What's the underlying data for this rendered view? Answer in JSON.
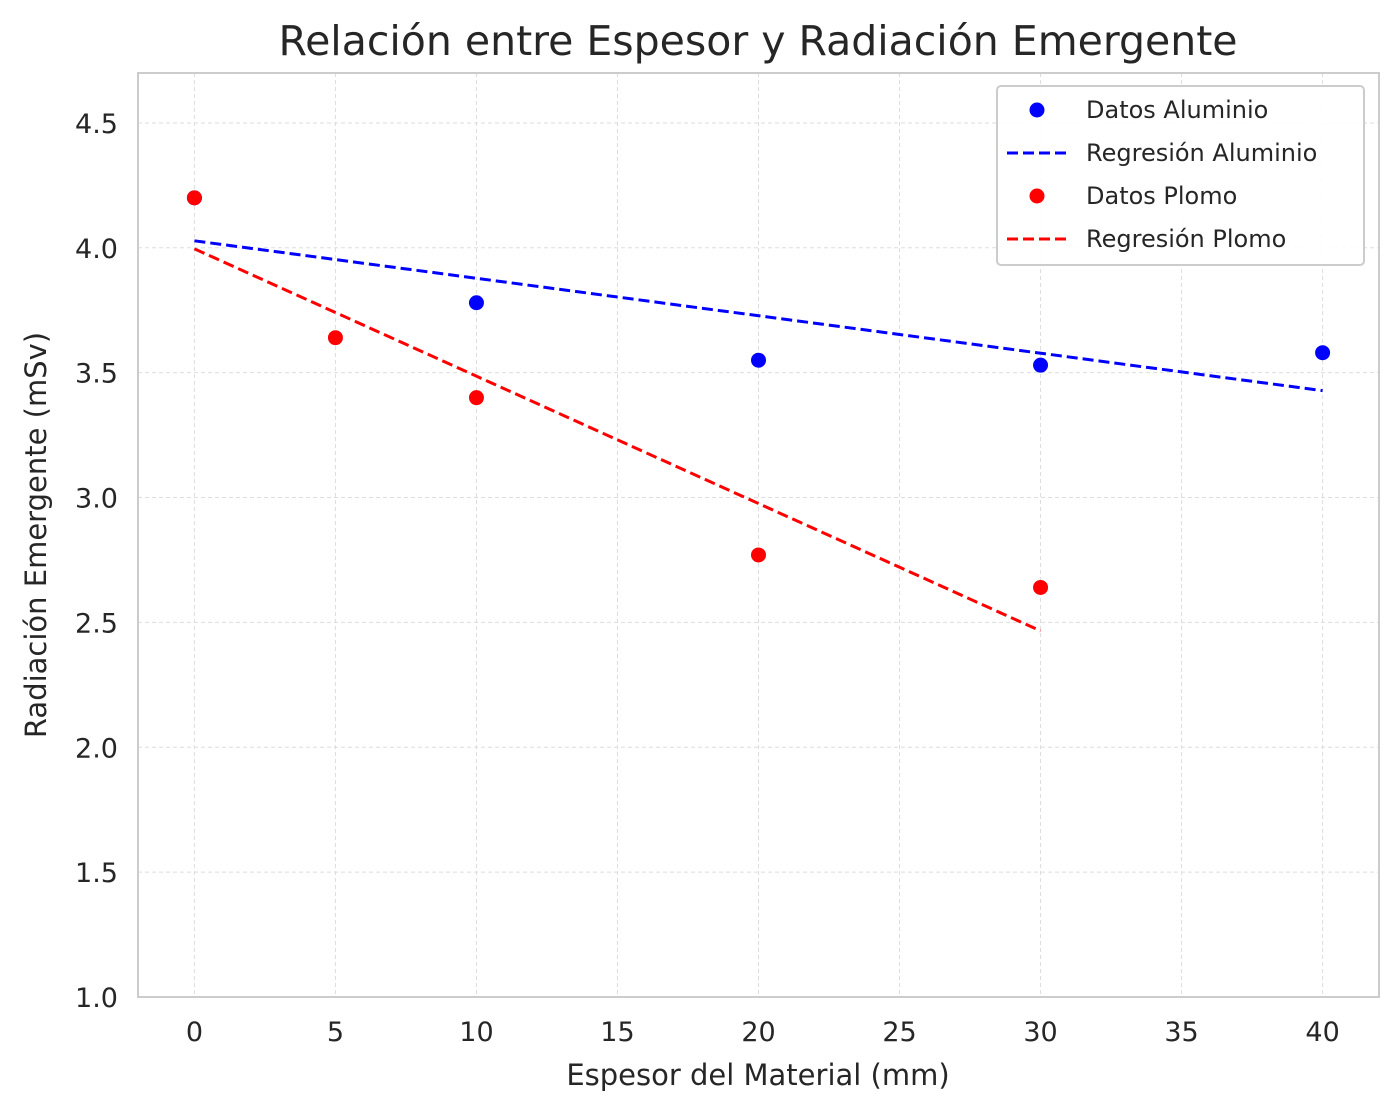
{
  "chart_data": {
    "type": "scatter",
    "title": "Relación entre Espesor y Radiación Emergente",
    "xlabel": "Espesor del Material (mm)",
    "ylabel": "Radiación Emergente (mSv)",
    "xlim": [
      -2,
      42
    ],
    "ylim": [
      1.0,
      4.7
    ],
    "xticks": [
      0,
      5,
      10,
      15,
      20,
      25,
      30,
      35,
      40
    ],
    "xtick_labels": [
      "0",
      "5",
      "10",
      "15",
      "20",
      "25",
      "30",
      "35",
      "40"
    ],
    "yticks": [
      1.0,
      1.5,
      2.0,
      2.5,
      3.0,
      3.5,
      4.0,
      4.5
    ],
    "ytick_labels": [
      "1.0",
      "1.5",
      "2.0",
      "2.5",
      "3.0",
      "3.5",
      "4.0",
      "4.5"
    ],
    "grid": true,
    "legend_position": "top-right",
    "series": [
      {
        "name": "Datos Aluminio",
        "kind": "scatter",
        "color": "#0000ff",
        "x": [
          0,
          10,
          20,
          30,
          40
        ],
        "y": [
          4.2,
          3.78,
          3.55,
          3.53,
          3.58
        ]
      },
      {
        "name": "Regresión Aluminio",
        "kind": "line",
        "style": "dashed",
        "color": "#0000ff",
        "x": [
          0,
          40
        ],
        "y": [
          4.028,
          3.428
        ]
      },
      {
        "name": "Datos Plomo",
        "kind": "scatter",
        "color": "#ff0000",
        "x": [
          0,
          5,
          10,
          20,
          30
        ],
        "y": [
          4.2,
          3.64,
          3.4,
          2.77,
          2.64
        ]
      },
      {
        "name": "Regresión Plomo",
        "kind": "line",
        "style": "dashed",
        "color": "#ff0000",
        "x": [
          0,
          30
        ],
        "y": [
          3.996,
          2.466
        ]
      }
    ]
  }
}
